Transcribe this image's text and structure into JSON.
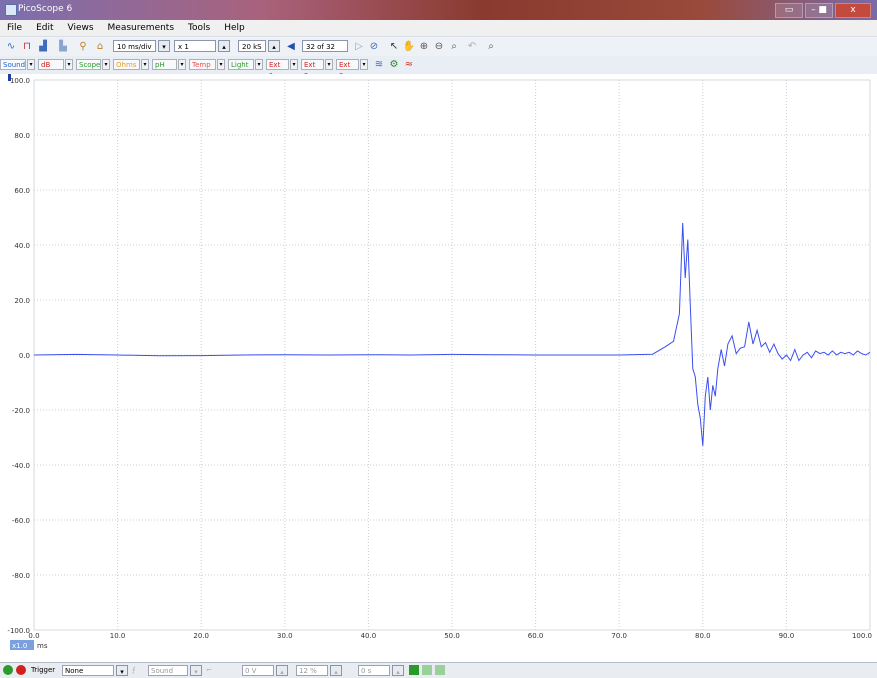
{
  "window": {
    "title": "PicoScope 6",
    "controls": [
      "▭",
      "–  ■",
      "x"
    ]
  },
  "menu": [
    "File",
    "Edit",
    "Views",
    "Measurements",
    "Tools",
    "Help"
  ],
  "toolbar": {
    "timebase": "10 ms/div",
    "zoom": "x 1",
    "samples": "20 kS",
    "buffer": "32 of 32"
  },
  "channels": [
    {
      "label": "Sound",
      "color": "#1f5fd0"
    },
    {
      "label": "dB",
      "color": "#d22020"
    },
    {
      "label": "Scope",
      "color": "#2a9a2a"
    },
    {
      "label": "Ohms",
      "color": "#e8a020"
    },
    {
      "label": "pH",
      "color": "#2a9a2a"
    },
    {
      "label": "Temp",
      "color": "#e85050"
    },
    {
      "label": "Light",
      "color": "#2a9a2a"
    },
    {
      "label": "Ext 1",
      "color": "#d22020"
    },
    {
      "label": "Ext 2",
      "color": "#d22020"
    },
    {
      "label": "Ext 3",
      "color": "#d22020"
    }
  ],
  "status": {
    "trigger_label": "Trigger",
    "trigger_mode": "None",
    "source": "Sound",
    "f1": "0 V",
    "f2": "12 %",
    "f3": "0 s"
  },
  "chart_data": {
    "type": "line",
    "xlabel": "",
    "xunit": "ms",
    "ylim": [
      -100,
      100
    ],
    "xlim": [
      0,
      100
    ],
    "yticks": [
      "100.0",
      "80.0",
      "60.0",
      "40.0",
      "20.0",
      "0.0",
      "-20.0",
      "-40.0",
      "-60.0",
      "-80.0",
      "-100.0"
    ],
    "xticks": [
      "0.0",
      "10.0",
      "20.0",
      "30.0",
      "40.0",
      "50.0",
      "60.0",
      "70.0",
      "80.0",
      "90.0",
      "100.0"
    ],
    "x_scale_label": "x1.0",
    "grid": true,
    "line_color": "#3a4ff0",
    "series": [
      {
        "x": [
          0,
          5,
          10,
          15,
          20,
          25,
          30,
          35,
          40,
          45,
          50,
          55,
          60,
          65,
          70,
          74,
          75.5,
          76.5,
          77.2,
          77.6,
          77.9,
          78.2,
          78.5,
          78.8,
          79.1,
          79.4,
          79.7,
          80.0,
          80.3,
          80.6,
          80.9,
          81.2,
          81.5,
          81.8,
          82.2,
          82.6,
          83.0,
          83.5,
          84.0,
          84.5,
          85.0,
          85.5,
          86.0,
          86.5,
          87.0,
          87.5,
          88.0,
          88.5,
          89.0,
          89.5,
          90.0,
          90.5,
          91.0,
          91.5,
          92.0,
          92.5,
          93.0,
          93.5,
          94.0,
          94.5,
          95.0,
          95.5,
          96.0,
          96.5,
          97.0,
          97.5,
          98.0,
          98.5,
          99.0,
          99.5,
          100
        ],
        "y": [
          0.0,
          0.2,
          0.0,
          -0.3,
          -0.2,
          0.0,
          0.1,
          0.0,
          0.1,
          0.0,
          0.2,
          0.1,
          0.0,
          0.0,
          0.0,
          0.3,
          3.0,
          5.0,
          15.0,
          48.0,
          28.0,
          42.0,
          18.0,
          -5.0,
          -8.0,
          -18.0,
          -23.0,
          -33.0,
          -15.0,
          -8.0,
          -20.0,
          -11.0,
          -15.0,
          -5.0,
          2.0,
          -4.0,
          4.0,
          7.0,
          0.5,
          2.5,
          3.0,
          12.0,
          4.0,
          9.0,
          3.0,
          4.5,
          1.0,
          4.0,
          0.5,
          -1.5,
          0.0,
          -2.0,
          2.0,
          -2.0,
          0.0,
          1.0,
          -1.0,
          1.5,
          0.5,
          1.0,
          0.0,
          1.5,
          0.0,
          1.0,
          0.5,
          1.0,
          0.0,
          1.5,
          0.5,
          0.0,
          1.0
        ]
      }
    ]
  }
}
